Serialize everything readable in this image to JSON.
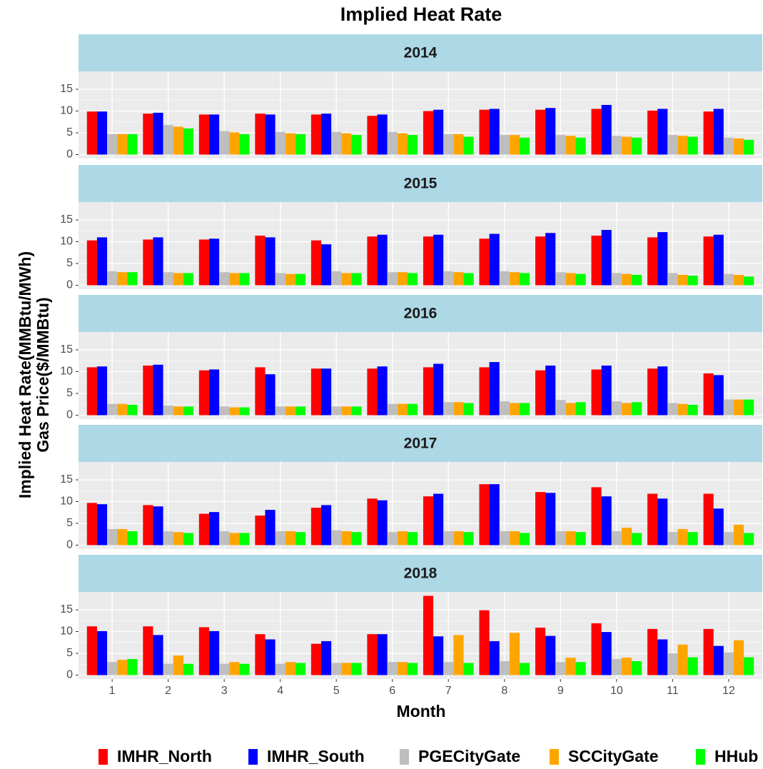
{
  "chart_data": {
    "type": "bar",
    "title": "Implied Heat Rate",
    "xlabel": "Month",
    "ylabel": [
      "Implied Heat Rate(MMBtu/MWh)",
      "Gas Price($/MMBtu)"
    ],
    "categories": [
      1,
      2,
      3,
      4,
      5,
      6,
      7,
      8,
      9,
      10,
      11,
      12
    ],
    "ylim": [
      -0.9,
      19.1
    ],
    "yticks": [
      0,
      5,
      10,
      15
    ],
    "grid": true,
    "legend": "bottom",
    "series": [
      {
        "name": "IMHR_North",
        "color": "#ff0000"
      },
      {
        "name": "IMHR_South",
        "color": "#0000ff"
      },
      {
        "name": "PGECityGate",
        "color": "#bebebe"
      },
      {
        "name": "SCCityGate",
        "color": "#ffa500"
      },
      {
        "name": "HHub",
        "color": "#00ff00"
      }
    ],
    "facets": [
      {
        "title": "2014",
        "series": [
          {
            "values": [
              9.9,
              9.4,
              9.2,
              9.4,
              9.2,
              8.9,
              10.0,
              10.3,
              10.3,
              10.5,
              10.1,
              9.9
            ]
          },
          {
            "values": [
              9.9,
              9.6,
              9.2,
              9.2,
              9.4,
              9.2,
              10.3,
              10.5,
              10.7,
              11.4,
              10.5,
              10.5
            ]
          },
          {
            "values": [
              4.7,
              6.8,
              5.4,
              5.2,
              5.2,
              5.2,
              4.7,
              4.5,
              4.5,
              4.3,
              4.5,
              3.9
            ]
          },
          {
            "values": [
              4.7,
              6.4,
              5.1,
              4.9,
              4.9,
              4.9,
              4.7,
              4.5,
              4.3,
              4.1,
              4.3,
              3.7
            ]
          },
          {
            "values": [
              4.7,
              6.0,
              4.7,
              4.7,
              4.5,
              4.5,
              4.1,
              3.9,
              3.9,
              3.9,
              4.1,
              3.4
            ]
          }
        ]
      },
      {
        "title": "2015",
        "series": [
          {
            "values": [
              10.3,
              10.5,
              10.5,
              11.4,
              10.3,
              11.2,
              11.2,
              10.7,
              11.2,
              11.4,
              11.0,
              11.2
            ]
          },
          {
            "values": [
              11.0,
              11.0,
              10.7,
              11.0,
              9.4,
              11.6,
              11.6,
              11.8,
              12.0,
              12.7,
              12.2,
              11.6
            ]
          },
          {
            "values": [
              3.2,
              3.0,
              3.0,
              2.8,
              3.2,
              3.0,
              3.2,
              3.2,
              3.0,
              2.8,
              2.8,
              2.6
            ]
          },
          {
            "values": [
              3.0,
              2.8,
              2.8,
              2.6,
              2.8,
              3.0,
              3.0,
              3.0,
              2.8,
              2.6,
              2.4,
              2.4
            ]
          },
          {
            "values": [
              3.0,
              2.8,
              2.8,
              2.6,
              2.8,
              2.8,
              2.8,
              2.8,
              2.6,
              2.4,
              2.2,
              2.0
            ]
          }
        ]
      },
      {
        "title": "2016",
        "series": [
          {
            "values": [
              11.0,
              11.4,
              10.3,
              11.0,
              10.7,
              10.7,
              11.0,
              11.0,
              10.3,
              10.5,
              10.7,
              9.6
            ]
          },
          {
            "values": [
              11.2,
              11.6,
              10.5,
              9.4,
              10.7,
              11.2,
              11.8,
              12.2,
              11.4,
              11.4,
              11.2,
              9.2
            ]
          },
          {
            "values": [
              2.6,
              2.2,
              2.0,
              2.0,
              2.0,
              2.6,
              3.0,
              3.2,
              3.5,
              3.2,
              2.8,
              3.6
            ]
          },
          {
            "values": [
              2.6,
              2.0,
              1.8,
              2.0,
              2.0,
              2.6,
              3.0,
              2.8,
              2.8,
              2.8,
              2.6,
              3.6
            ]
          },
          {
            "values": [
              2.4,
              2.0,
              1.8,
              2.0,
              2.0,
              2.6,
              2.8,
              2.8,
              3.0,
              3.0,
              2.4,
              3.6
            ]
          }
        ]
      },
      {
        "title": "2017",
        "series": [
          {
            "values": [
              9.7,
              9.2,
              7.2,
              6.8,
              8.6,
              10.7,
              11.2,
              14.0,
              12.2,
              13.3,
              11.8,
              11.8
            ]
          },
          {
            "values": [
              9.4,
              8.9,
              7.6,
              8.1,
              9.2,
              10.3,
              11.8,
              14.0,
              12.0,
              11.2,
              10.7,
              8.4
            ]
          },
          {
            "values": [
              3.7,
              3.2,
              3.2,
              3.2,
              3.4,
              3.0,
              3.2,
              3.2,
              3.2,
              3.2,
              3.0,
              3.0
            ]
          },
          {
            "values": [
              3.7,
              3.0,
              2.8,
              3.2,
              3.2,
              3.2,
              3.2,
              3.2,
              3.2,
              4.0,
              3.7,
              4.7
            ]
          },
          {
            "values": [
              3.2,
              2.8,
              2.8,
              3.0,
              3.0,
              3.0,
              3.0,
              2.8,
              3.0,
              2.8,
              3.0,
              2.8
            ]
          }
        ]
      },
      {
        "title": "2018",
        "series": [
          {
            "values": [
              11.2,
              11.2,
              11.0,
              9.4,
              7.2,
              9.4,
              18.2,
              14.9,
              10.9,
              11.9,
              10.6,
              10.6
            ]
          },
          {
            "values": [
              10.1,
              9.2,
              10.1,
              8.2,
              7.8,
              9.4,
              8.9,
              7.8,
              9.0,
              9.9,
              8.2,
              6.7
            ]
          },
          {
            "values": [
              3.0,
              2.6,
              2.6,
              2.6,
              2.8,
              3.0,
              3.0,
              3.2,
              3.0,
              3.7,
              5.0,
              5.2
            ]
          },
          {
            "values": [
              3.5,
              4.5,
              3.0,
              3.0,
              2.8,
              3.0,
              9.2,
              9.7,
              4.0,
              4.0,
              7.0,
              8.0
            ]
          },
          {
            "values": [
              3.7,
              2.6,
              2.6,
              2.8,
              2.8,
              2.8,
              2.8,
              2.8,
              3.0,
              3.2,
              4.1,
              4.1
            ]
          }
        ]
      }
    ]
  }
}
